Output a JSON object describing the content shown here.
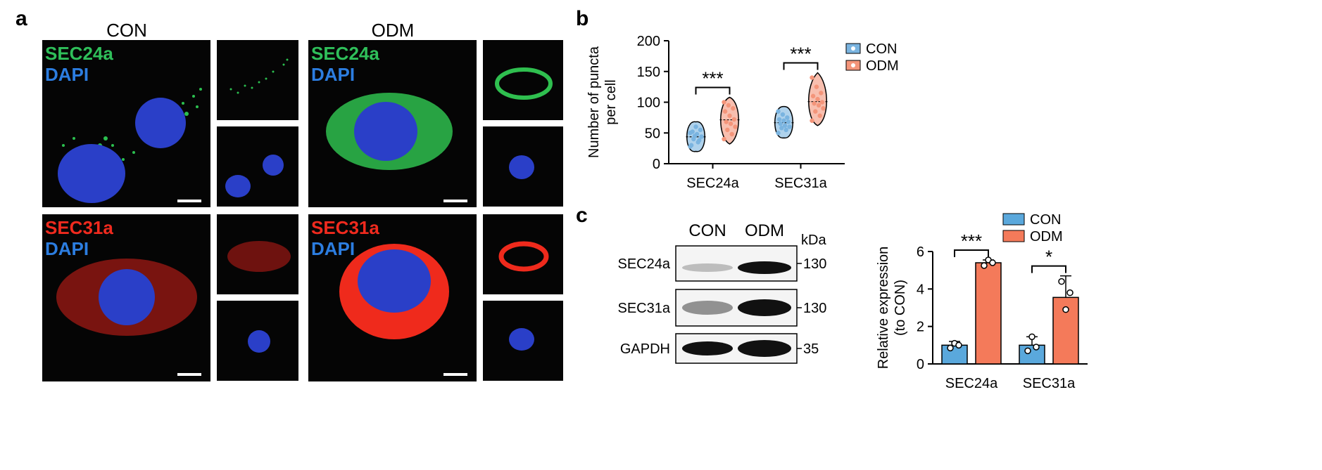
{
  "panel_a": {
    "letter": "a",
    "conditions": [
      "CON",
      "ODM"
    ],
    "top_labels": [
      "SEC24a",
      "DAPI"
    ],
    "bottom_labels": [
      "SEC31a",
      "DAPI"
    ],
    "colors": {
      "sec24a": "#2fbf5a",
      "dapi": "#2c7de0",
      "sec31a": "#f02a1e"
    }
  },
  "panel_b": {
    "letter": "b",
    "chart_data": {
      "type": "violin",
      "ylabel": [
        "Number of puncta",
        "per cell"
      ],
      "ylim": [
        0,
        200
      ],
      "yticks": [
        0,
        50,
        100,
        150,
        200
      ],
      "categories": [
        "SEC24a",
        "SEC31a"
      ],
      "legend": {
        "position": "top-right"
      },
      "series": [
        {
          "name": "CON",
          "color": "#7ab4e0",
          "values": [
            [
              28,
              35,
              40,
              44,
              48,
              52,
              55,
              60,
              30,
              38,
              45,
              50
            ],
            [
              50,
              55,
              58,
              60,
              62,
              65,
              68,
              70,
              72,
              75,
              80,
              85
            ]
          ]
        },
        {
          "name": "ODM",
          "color": "#f4957a",
          "values": [
            [
              40,
              48,
              55,
              60,
              65,
              68,
              72,
              78,
              85,
              90,
              95,
              100
            ],
            [
              70,
              78,
              85,
              90,
              95,
              98,
              100,
              105,
              110,
              115,
              125,
              140
            ]
          ]
        }
      ],
      "significance": [
        "***",
        "***"
      ]
    }
  },
  "panel_c": {
    "letter": "c",
    "blot": {
      "lanes": [
        "CON",
        "ODM"
      ],
      "unit": "kDa",
      "rows": [
        {
          "label": "SEC24a",
          "mw": "130"
        },
        {
          "label": "SEC31a",
          "mw": "130"
        },
        {
          "label": "GAPDH",
          "mw": "35"
        }
      ]
    },
    "chart_data": {
      "type": "bar",
      "ylabel": [
        "Relative expression",
        "(to CON)"
      ],
      "ylim": [
        0,
        6
      ],
      "yticks": [
        0,
        2,
        4,
        6
      ],
      "categories": [
        "SEC24a",
        "SEC31a"
      ],
      "legend": {
        "position": "top"
      },
      "series": [
        {
          "name": "CON",
          "color": "#5aa8dc",
          "values": [
            1.0,
            1.0
          ],
          "errors": [
            0.2,
            0.45
          ],
          "points": [
            [
              0.85,
              1.1,
              1.0
            ],
            [
              0.7,
              1.45,
              0.9
            ]
          ]
        },
        {
          "name": "ODM",
          "color": "#f47a5a",
          "values": [
            5.4,
            3.55
          ],
          "errors": [
            0.15,
            1.15
          ],
          "points": [
            [
              5.25,
              5.55,
              5.4
            ],
            [
              4.4,
              2.9,
              3.8
            ]
          ]
        }
      ],
      "significance": [
        "***",
        "*"
      ]
    }
  }
}
